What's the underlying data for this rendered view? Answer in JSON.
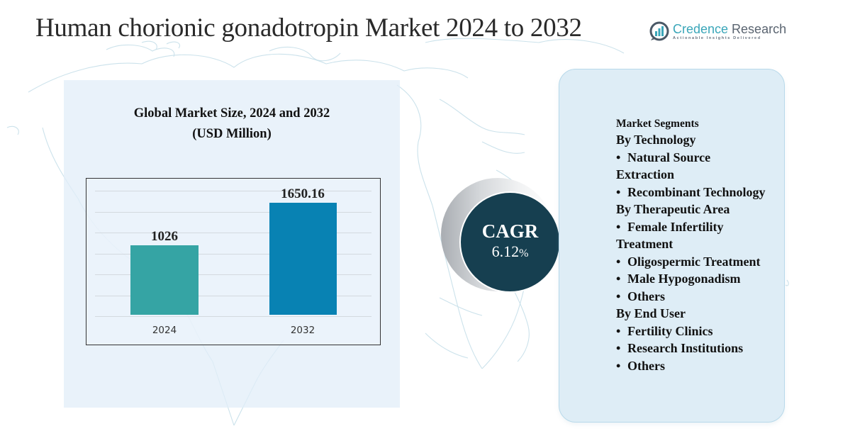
{
  "header": {
    "title": "Human chorionic gonadotropin Market 2024 to 2032"
  },
  "logo": {
    "name_part1": "Credence",
    "name_part2": " Research",
    "tagline": "Actionable Insights Delivered",
    "icon": "bar-chart-in-circle-icon"
  },
  "chart_panel": {
    "title_line1": "Global Market Size, 2024 and 2032",
    "title_line2": "(USD Million)"
  },
  "chart_data": {
    "type": "bar",
    "title": "Global Market Size, 2024 and 2032 (USD Million)",
    "categories": [
      "2024",
      "2032"
    ],
    "values": [
      1026,
      1650.16
    ],
    "value_labels": [
      "1026",
      "1650.16"
    ],
    "colors": [
      "#35a4a4",
      "#0882b3"
    ],
    "xlabel": "",
    "ylabel": "USD Million",
    "ylim": [
      0,
      1900
    ],
    "grid": true,
    "legend": "none"
  },
  "cagr": {
    "label": "CAGR",
    "value": "6.12",
    "unit": "%",
    "circle_color": "#163f50"
  },
  "segments": {
    "heading": "Market Segments",
    "groups": [
      {
        "title": "By Technology",
        "items": [
          {
            "first": "Natural Source",
            "cont": "Extraction"
          },
          {
            "first": "Recombinant Technology",
            "cont": ""
          }
        ]
      },
      {
        "title": "By Therapeutic Area",
        "items": [
          {
            "first": "Female Infertility",
            "cont": "Treatment"
          },
          {
            "first": "Oligospermic Treatment",
            "cont": ""
          },
          {
            "first": "Male Hypogonadism",
            "cont": ""
          },
          {
            "first": "Others",
            "cont": ""
          }
        ]
      },
      {
        "title": "By End User",
        "items": [
          {
            "first": "Fertility Clinics",
            "cont": ""
          },
          {
            "first": "Research Institutions",
            "cont": ""
          },
          {
            "first": "Others",
            "cont": ""
          }
        ]
      }
    ],
    "bullet": "•"
  },
  "colors": {
    "chart_panel_bg": "#e2eef8",
    "segment_panel_bg": "#deedf6",
    "segment_panel_border": "#b8d9ea",
    "map_stroke": "#b9d9e6"
  }
}
